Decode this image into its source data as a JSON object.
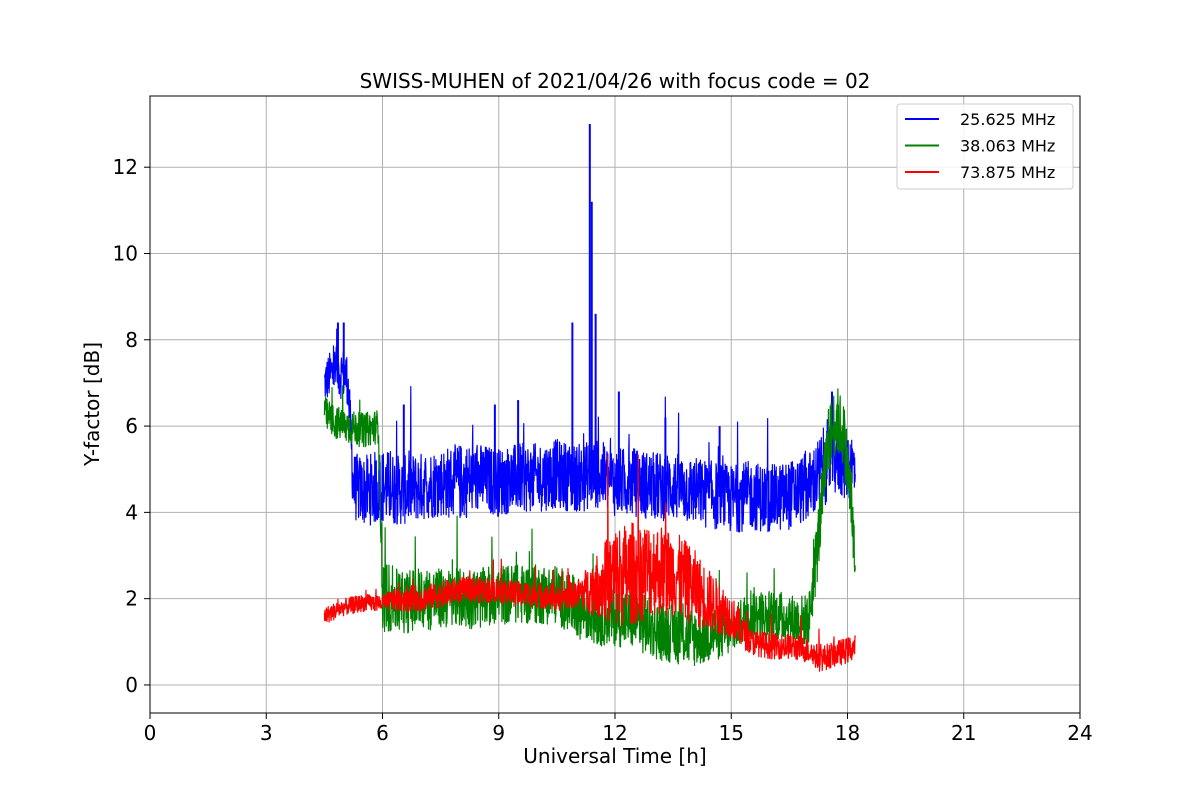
{
  "chart_data": {
    "type": "line",
    "title": "SWISS-MUHEN of 2021/04/26 with focus code = 02",
    "xlabel": "Universal Time [h]",
    "ylabel": "Y-factor [dB]",
    "xlim": [
      0,
      24
    ],
    "ylim": [
      -0.65,
      13.65
    ],
    "xticks": [
      0,
      3,
      6,
      9,
      12,
      15,
      18,
      21,
      24
    ],
    "yticks": [
      0,
      2,
      4,
      6,
      8,
      10,
      12
    ],
    "grid": true,
    "legend_position": "top-right",
    "series": [
      {
        "name": "25.625 MHz",
        "color": "#0000ff",
        "x": [
          4.5,
          4.75,
          5.0,
          5.1,
          5.25,
          5.5,
          6.0,
          6.5,
          7.0,
          7.5,
          8.0,
          8.5,
          9.0,
          9.5,
          10.0,
          10.5,
          10.9,
          11.2,
          11.35,
          11.5,
          12.0,
          12.5,
          13.0,
          13.5,
          14.0,
          14.5,
          15.0,
          15.5,
          16.0,
          16.5,
          17.0,
          17.3,
          17.6,
          17.9,
          18.2
        ],
        "values": [
          7.0,
          7.3,
          7.2,
          7.1,
          4.6,
          4.5,
          4.6,
          4.5,
          4.6,
          4.7,
          4.7,
          4.8,
          4.7,
          4.8,
          4.8,
          4.9,
          4.8,
          4.8,
          4.9,
          4.9,
          4.7,
          4.7,
          4.6,
          4.6,
          4.5,
          4.4,
          4.3,
          4.4,
          4.3,
          4.4,
          4.6,
          4.9,
          5.4,
          5.2,
          5.0
        ],
        "spread": [
          0.5,
          0.6,
          0.6,
          0.6,
          0.8,
          0.8,
          0.9,
          0.8,
          0.8,
          0.8,
          0.9,
          0.8,
          0.8,
          0.8,
          0.8,
          0.8,
          0.8,
          0.8,
          0.8,
          0.8,
          0.8,
          0.8,
          0.8,
          0.8,
          0.8,
          0.8,
          0.8,
          0.8,
          0.8,
          0.8,
          0.8,
          0.9,
          1.0,
          0.9,
          0.8
        ],
        "peaks": [
          [
            4.85,
            8.4
          ],
          [
            5.0,
            8.4
          ],
          [
            6.55,
            6.5
          ],
          [
            8.9,
            6.5
          ],
          [
            9.5,
            6.6
          ],
          [
            10.9,
            8.4
          ],
          [
            11.35,
            13.0
          ],
          [
            11.4,
            11.2
          ],
          [
            11.5,
            8.6
          ],
          [
            12.1,
            6.8
          ],
          [
            13.3,
            6.2
          ],
          [
            14.7,
            6.0
          ],
          [
            17.6,
            6.8
          ]
        ]
      },
      {
        "name": "38.063 MHz",
        "color": "#008000",
        "x": [
          4.5,
          4.75,
          5.0,
          5.5,
          5.9,
          6.0,
          6.2,
          6.5,
          7.0,
          7.5,
          8.0,
          8.5,
          9.0,
          9.5,
          10.0,
          10.5,
          11.0,
          11.5,
          12.0,
          12.5,
          13.0,
          13.5,
          14.0,
          14.5,
          15.0,
          15.5,
          15.8,
          16.2,
          16.6,
          17.0,
          17.2,
          17.5,
          17.7,
          17.9,
          18.1,
          18.2
        ],
        "values": [
          6.3,
          6.1,
          6.0,
          5.9,
          6.0,
          2.1,
          2.0,
          1.9,
          2.0,
          2.0,
          2.0,
          2.0,
          2.1,
          2.1,
          2.1,
          2.1,
          1.8,
          1.6,
          1.6,
          1.5,
          1.3,
          1.2,
          1.1,
          1.2,
          1.2,
          1.7,
          1.6,
          1.6,
          1.5,
          1.5,
          3.0,
          5.6,
          6.2,
          5.8,
          4.2,
          2.5
        ],
        "spread": [
          0.4,
          0.4,
          0.4,
          0.4,
          0.4,
          0.9,
          0.8,
          0.7,
          0.8,
          0.7,
          0.7,
          0.7,
          0.7,
          0.7,
          0.7,
          0.7,
          0.7,
          0.7,
          0.7,
          0.7,
          0.7,
          0.7,
          0.7,
          0.7,
          0.5,
          0.6,
          0.6,
          0.6,
          0.6,
          0.6,
          0.8,
          0.8,
          0.8,
          0.8,
          0.8,
          0.9
        ]
      },
      {
        "name": "73.875 MHz",
        "color": "#ff0000",
        "x": [
          4.5,
          5.0,
          5.5,
          6.0,
          6.5,
          7.0,
          7.5,
          8.0,
          8.5,
          9.0,
          9.5,
          10.0,
          10.5,
          11.0,
          11.5,
          12.0,
          12.5,
          13.0,
          13.5,
          14.0,
          14.5,
          15.0,
          15.5,
          16.0,
          16.5,
          17.0,
          17.3,
          17.6,
          18.0,
          18.2
        ],
        "values": [
          1.6,
          1.8,
          1.9,
          1.9,
          2.0,
          2.0,
          2.1,
          2.2,
          2.2,
          2.2,
          2.1,
          2.1,
          2.0,
          2.1,
          2.3,
          2.5,
          2.6,
          2.7,
          2.6,
          2.3,
          1.9,
          1.6,
          1.0,
          0.9,
          0.9,
          0.8,
          0.6,
          0.7,
          0.8,
          0.9
        ],
        "spread": [
          0.2,
          0.2,
          0.2,
          0.2,
          0.3,
          0.3,
          0.3,
          0.3,
          0.3,
          0.3,
          0.3,
          0.3,
          0.3,
          0.3,
          0.7,
          1.2,
          1.2,
          1.1,
          1.0,
          0.9,
          0.7,
          0.5,
          0.3,
          0.3,
          0.3,
          0.3,
          0.3,
          0.3,
          0.3,
          0.3
        ]
      }
    ]
  }
}
